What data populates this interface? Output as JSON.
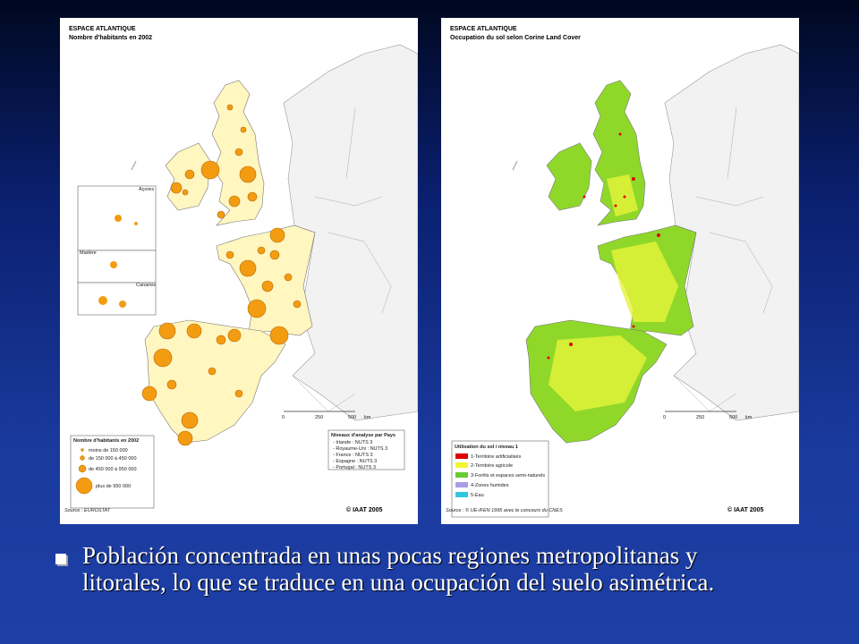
{
  "left_map": {
    "title": "ESPACE ATLANTIQUE",
    "subtitle": "Nombre d'habitants en 2002",
    "insets": [
      "Açores",
      "Madère",
      "Canaries"
    ],
    "scale": [
      "0",
      "250",
      "500",
      "km"
    ],
    "legend": {
      "title": "Nombre d'habitants en 2002",
      "items": [
        "moins de 150 000",
        "de 150 000 à 450 000",
        "de 450 000 à 950 000",
        "plus de 950 000"
      ]
    },
    "levels": {
      "title": "Niveaux d'analyse par Pays",
      "items": [
        "- Irlande : NUTS 3",
        "- Royaume-Uni : NUTS 3",
        "- France : NUTS 3",
        "- Espagne : NUTS 3",
        "- Portugal : NUTS 3"
      ]
    },
    "source": "Source : EUROSTAT",
    "copyright": "© IAAT 2005"
  },
  "right_map": {
    "title": "ESPACE ATLANTIQUE",
    "subtitle": "Occupation du sol selon Corine Land Cover",
    "scale": [
      "0",
      "250",
      "500",
      "km"
    ],
    "legend": {
      "title": "Utilisation du sol / niveau 1",
      "items": [
        "1-Territoire artificialisés",
        "2-Territoire agricole",
        "3-Forêts et espaces semi-naturels",
        "4-Zones humides",
        "5-Eau"
      ]
    },
    "source": "Source : © UE-IFEN 1995 avec le concours du CNES",
    "copyright": "© IAAT 2005"
  },
  "caption": [
    "Población concentrada en unas pocas regiones metropolitanas y",
    "litorales, lo que se traduce en una ocupación del suelo asimétrica."
  ]
}
